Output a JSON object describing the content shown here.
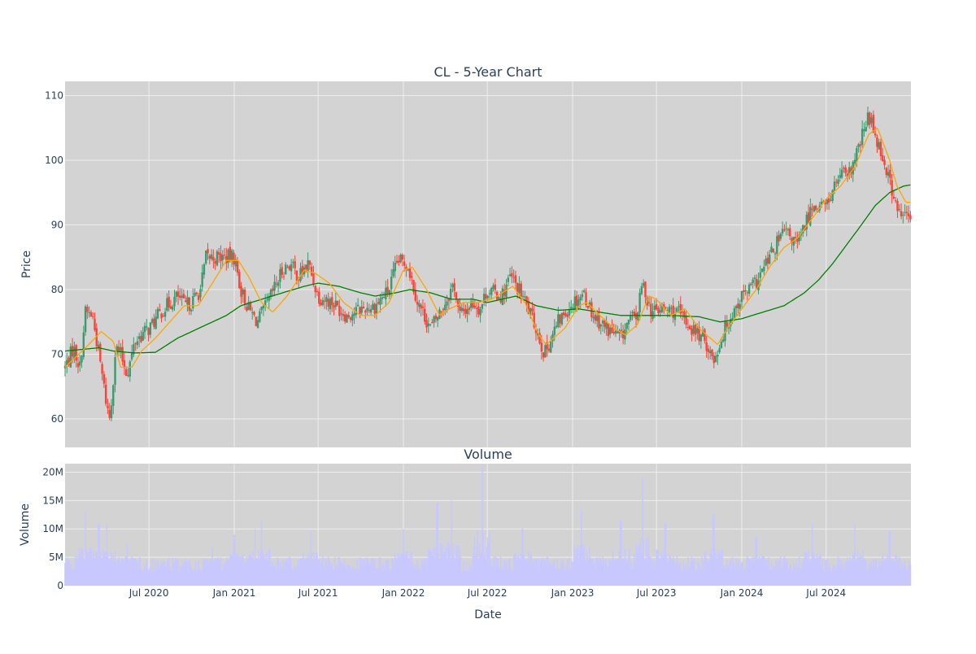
{
  "colors": {
    "background": "#ffffff",
    "plot_bg": "#d3d3d3",
    "grid": "#eeeeee",
    "text": "#2a3f5f",
    "candle_up": "#3d9970",
    "candle_down": "#ff4136",
    "ma_short": "#ffa500",
    "ma_long": "#008000",
    "volume": "#c8c8ff"
  },
  "chart_data": [
    {
      "type": "candlestick",
      "title": "CL - 5-Year Chart",
      "ylabel": "Price",
      "xlabel": "",
      "x_range": [
        "2020-01-02",
        "2024-12-31"
      ],
      "ylim": [
        55.6,
        112.2
      ],
      "y_ticks": [
        {
          "value": 60,
          "label": "60"
        },
        {
          "value": 70,
          "label": "70"
        },
        {
          "value": 80,
          "label": "80"
        },
        {
          "value": 90,
          "label": "90"
        },
        {
          "value": 100,
          "label": "100"
        },
        {
          "value": 110,
          "label": "110"
        }
      ],
      "grid": true,
      "close_anchors": [
        [
          "2020-01-02",
          68
        ],
        [
          "2020-01-20",
          71
        ],
        [
          "2020-02-03",
          68
        ],
        [
          "2020-02-15",
          76.5
        ],
        [
          "2020-03-01",
          76
        ],
        [
          "2020-03-15",
          70
        ],
        [
          "2020-04-01",
          62
        ],
        [
          "2020-04-08",
          60
        ],
        [
          "2020-04-20",
          71
        ],
        [
          "2020-05-01",
          70
        ],
        [
          "2020-05-15",
          67
        ],
        [
          "2020-06-01",
          72
        ],
        [
          "2020-06-15",
          73
        ],
        [
          "2020-07-01",
          74
        ],
        [
          "2020-08-01",
          77
        ],
        [
          "2020-09-01",
          79
        ],
        [
          "2020-09-15",
          77.5
        ],
        [
          "2020-10-01",
          78
        ],
        [
          "2020-10-20",
          80
        ],
        [
          "2020-11-01",
          85
        ],
        [
          "2020-12-01",
          85
        ],
        [
          "2021-01-01",
          85
        ],
        [
          "2021-01-15",
          80
        ],
        [
          "2021-02-01",
          77
        ],
        [
          "2021-02-20",
          75
        ],
        [
          "2021-03-15",
          78
        ],
        [
          "2021-04-15",
          83
        ],
        [
          "2021-05-01",
          84
        ],
        [
          "2021-05-20",
          82
        ],
        [
          "2021-06-10",
          84
        ],
        [
          "2021-07-01",
          79
        ],
        [
          "2021-08-01",
          78
        ],
        [
          "2021-09-01",
          76
        ],
        [
          "2021-10-01",
          77
        ],
        [
          "2021-11-01",
          77.5
        ],
        [
          "2021-12-01",
          80
        ],
        [
          "2021-12-20",
          84.5
        ],
        [
          "2022-01-10",
          84
        ],
        [
          "2022-02-01",
          78
        ],
        [
          "2022-03-01",
          74
        ],
        [
          "2022-04-01",
          78
        ],
        [
          "2022-04-20",
          81
        ],
        [
          "2022-05-01",
          76
        ],
        [
          "2022-06-01",
          78
        ],
        [
          "2022-06-15",
          77
        ],
        [
          "2022-07-01",
          80
        ],
        [
          "2022-08-01",
          79
        ],
        [
          "2022-08-20",
          82
        ],
        [
          "2022-09-15",
          79
        ],
        [
          "2022-10-15",
          74
        ],
        [
          "2022-11-01",
          70
        ],
        [
          "2022-12-01",
          75
        ],
        [
          "2023-01-01",
          78
        ],
        [
          "2023-01-25",
          79.5
        ],
        [
          "2023-02-15",
          76
        ],
        [
          "2023-03-15",
          74
        ],
        [
          "2023-04-15",
          72.5
        ],
        [
          "2023-05-01",
          75
        ],
        [
          "2023-05-20",
          76
        ],
        [
          "2023-06-01",
          81
        ],
        [
          "2023-06-20",
          76.5
        ],
        [
          "2023-07-15",
          77
        ],
        [
          "2023-08-15",
          76.5
        ],
        [
          "2023-09-15",
          74
        ],
        [
          "2023-10-15",
          72
        ],
        [
          "2023-11-01",
          69
        ],
        [
          "2023-12-01",
          75
        ],
        [
          "2024-01-01",
          79
        ],
        [
          "2024-02-01",
          81
        ],
        [
          "2024-03-01",
          85
        ],
        [
          "2024-04-01",
          89
        ],
        [
          "2024-05-01",
          87
        ],
        [
          "2024-06-01",
          93
        ],
        [
          "2024-07-01",
          93
        ],
        [
          "2024-08-01",
          98
        ],
        [
          "2024-08-15",
          97
        ],
        [
          "2024-09-01",
          100
        ],
        [
          "2024-10-01",
          107
        ],
        [
          "2024-10-20",
          103
        ],
        [
          "2024-11-15",
          97
        ],
        [
          "2024-12-01",
          92
        ],
        [
          "2024-12-31",
          91
        ]
      ],
      "ma_short_anchors": [
        [
          "2020-01-02",
          68
        ],
        [
          "2020-02-15",
          71
        ],
        [
          "2020-03-20",
          73.5
        ],
        [
          "2020-04-15",
          72
        ],
        [
          "2020-05-01",
          68
        ],
        [
          "2020-05-25",
          68
        ],
        [
          "2020-06-15",
          70.5
        ],
        [
          "2020-07-15",
          72.5
        ],
        [
          "2020-08-15",
          75
        ],
        [
          "2020-09-15",
          77.5
        ],
        [
          "2020-10-15",
          77.5
        ],
        [
          "2020-11-15",
          81
        ],
        [
          "2020-12-15",
          84.5
        ],
        [
          "2021-01-10",
          84.5
        ],
        [
          "2021-02-01",
          82
        ],
        [
          "2021-03-01",
          78
        ],
        [
          "2021-03-25",
          76.5
        ],
        [
          "2021-04-25",
          79
        ],
        [
          "2021-06-01",
          83
        ],
        [
          "2021-06-25",
          82.5
        ],
        [
          "2021-07-25",
          81
        ],
        [
          "2021-08-25",
          78
        ],
        [
          "2021-10-01",
          76
        ],
        [
          "2021-11-01",
          76
        ],
        [
          "2021-12-01",
          78
        ],
        [
          "2022-01-01",
          83
        ],
        [
          "2022-01-20",
          83.5
        ],
        [
          "2022-02-20",
          80
        ],
        [
          "2022-03-20",
          76
        ],
        [
          "2022-04-10",
          77
        ],
        [
          "2022-05-10",
          78
        ],
        [
          "2022-06-10",
          78
        ],
        [
          "2022-07-10",
          78.5
        ],
        [
          "2022-08-25",
          80.5
        ],
        [
          "2022-09-20",
          78
        ],
        [
          "2022-10-20",
          73
        ],
        [
          "2022-11-05",
          71.5
        ],
        [
          "2022-12-15",
          74
        ],
        [
          "2023-01-15",
          77.5
        ],
        [
          "2023-02-01",
          78
        ],
        [
          "2023-03-01",
          76
        ],
        [
          "2023-04-01",
          74
        ],
        [
          "2023-04-25",
          73
        ],
        [
          "2023-05-20",
          74.5
        ],
        [
          "2023-06-15",
          79
        ],
        [
          "2023-07-01",
          78.5
        ],
        [
          "2023-08-01",
          76
        ],
        [
          "2023-09-01",
          77
        ],
        [
          "2023-10-01",
          74
        ],
        [
          "2023-11-10",
          71.5
        ],
        [
          "2023-12-01",
          74
        ],
        [
          "2024-01-01",
          77
        ],
        [
          "2024-02-01",
          80
        ],
        [
          "2024-03-01",
          83.5
        ],
        [
          "2024-04-01",
          86.5
        ],
        [
          "2024-05-01",
          88
        ],
        [
          "2024-06-01",
          91
        ],
        [
          "2024-07-01",
          94
        ],
        [
          "2024-08-01",
          96
        ],
        [
          "2024-09-01",
          99
        ],
        [
          "2024-10-01",
          104
        ],
        [
          "2024-10-20",
          105
        ],
        [
          "2024-11-15",
          100
        ],
        [
          "2024-12-01",
          96
        ],
        [
          "2024-12-20",
          93.5
        ],
        [
          "2024-12-31",
          93.5
        ]
      ],
      "ma_long_anchors": [
        [
          "2020-01-02",
          70.5
        ],
        [
          "2020-03-15",
          71
        ],
        [
          "2020-04-15",
          70.5
        ],
        [
          "2020-06-01",
          70.2
        ],
        [
          "2020-07-15",
          70.3
        ],
        [
          "2020-09-01",
          72.5
        ],
        [
          "2020-10-01",
          73.5
        ],
        [
          "2020-11-15",
          75
        ],
        [
          "2020-12-15",
          76
        ],
        [
          "2021-01-15",
          77.5
        ],
        [
          "2021-03-01",
          78.5
        ],
        [
          "2021-04-15",
          79.5
        ],
        [
          "2021-06-01",
          80.5
        ],
        [
          "2021-07-01",
          81
        ],
        [
          "2021-08-15",
          80.5
        ],
        [
          "2021-10-01",
          79.5
        ],
        [
          "2021-11-01",
          79
        ],
        [
          "2021-12-15",
          79.5
        ],
        [
          "2022-01-15",
          80
        ],
        [
          "2022-03-01",
          79.5
        ],
        [
          "2022-04-15",
          78.5
        ],
        [
          "2022-06-01",
          78.5
        ],
        [
          "2022-07-01",
          78
        ],
        [
          "2022-09-01",
          79
        ],
        [
          "2022-10-15",
          77.5
        ],
        [
          "2022-12-01",
          76.8
        ],
        [
          "2023-01-15",
          77
        ],
        [
          "2023-03-01",
          76.5
        ],
        [
          "2023-04-15",
          76
        ],
        [
          "2023-06-01",
          76
        ],
        [
          "2023-08-01",
          76
        ],
        [
          "2023-10-01",
          75.8
        ],
        [
          "2023-11-15",
          75
        ],
        [
          "2024-01-01",
          75.5
        ],
        [
          "2024-02-15",
          76.5
        ],
        [
          "2024-04-01",
          77.5
        ],
        [
          "2024-05-15",
          79.5
        ],
        [
          "2024-06-15",
          81.5
        ],
        [
          "2024-07-15",
          84
        ],
        [
          "2024-08-15",
          87
        ],
        [
          "2024-09-15",
          90
        ],
        [
          "2024-10-15",
          93
        ],
        [
          "2024-11-15",
          95
        ],
        [
          "2024-12-15",
          96
        ],
        [
          "2024-12-31",
          96.2
        ]
      ]
    },
    {
      "type": "bar",
      "title": "Volume",
      "ylabel": "Volume",
      "xlabel": "Date",
      "x_range": [
        "2020-01-02",
        "2024-12-31"
      ],
      "ylim": [
        0,
        21500000
      ],
      "y_ticks": [
        {
          "value": 0,
          "label": "0"
        },
        {
          "value": 5000000,
          "label": "5M"
        },
        {
          "value": 10000000,
          "label": "10M"
        },
        {
          "value": 15000000,
          "label": "15M"
        },
        {
          "value": 20000000,
          "label": "20M"
        }
      ],
      "x_ticks": [
        {
          "value": "2020-07-01",
          "label": "Jul 2020"
        },
        {
          "value": "2021-01-01",
          "label": "Jan 2021"
        },
        {
          "value": "2021-07-01",
          "label": "Jul 2021"
        },
        {
          "value": "2022-01-01",
          "label": "Jan 2022"
        },
        {
          "value": "2022-07-01",
          "label": "Jul 2022"
        },
        {
          "value": "2023-01-01",
          "label": "Jan 2023"
        },
        {
          "value": "2023-07-01",
          "label": "Jul 2023"
        },
        {
          "value": "2024-01-01",
          "label": "Jan 2024"
        },
        {
          "value": "2024-07-01",
          "label": "Jul 2024"
        }
      ],
      "base_level": 4000000,
      "spikes": [
        [
          "2020-02-15",
          13000000
        ],
        [
          "2020-03-15",
          11000000
        ],
        [
          "2020-04-01",
          11000000
        ],
        [
          "2020-05-15",
          7500000
        ],
        [
          "2020-11-15",
          7000000
        ],
        [
          "2021-01-01",
          9000000
        ],
        [
          "2021-02-15",
          10000000
        ],
        [
          "2021-03-01",
          11500000
        ],
        [
          "2021-06-15",
          9500000
        ],
        [
          "2022-01-01",
          10000000
        ],
        [
          "2022-03-15",
          14500000
        ],
        [
          "2022-04-15",
          15000000
        ],
        [
          "2022-06-20",
          21000000
        ],
        [
          "2022-09-15",
          10000000
        ],
        [
          "2023-01-20",
          13500000
        ],
        [
          "2023-04-15",
          11500000
        ],
        [
          "2023-06-01",
          19000000
        ],
        [
          "2023-07-20",
          11000000
        ],
        [
          "2023-11-01",
          12500000
        ],
        [
          "2024-02-01",
          8500000
        ],
        [
          "2024-06-01",
          11000000
        ],
        [
          "2024-09-01",
          11000000
        ],
        [
          "2024-11-15",
          9500000
        ]
      ]
    }
  ]
}
